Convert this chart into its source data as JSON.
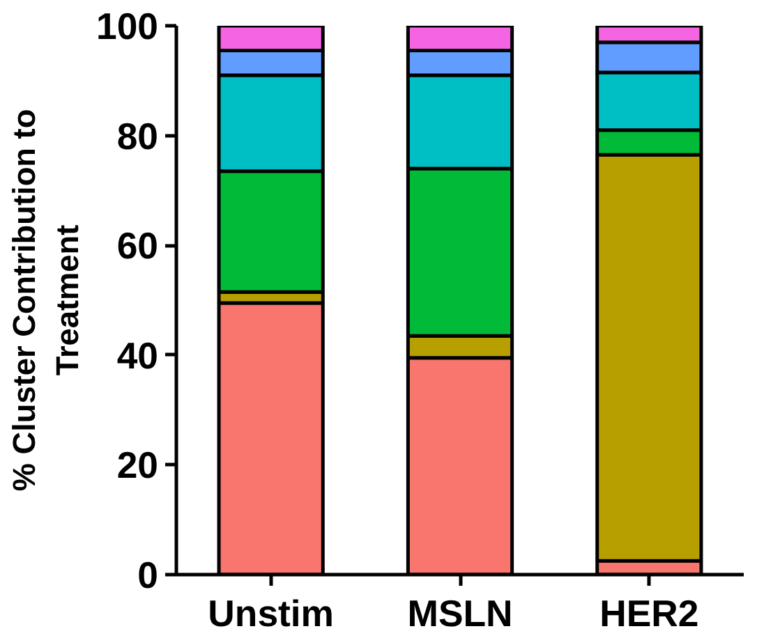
{
  "chart_data": {
    "type": "bar",
    "stacked": true,
    "ylabel": "% Cluster Contribution to\nTreatment",
    "categories": [
      "Unstim",
      "MSLN",
      "HER2"
    ],
    "series": [
      {
        "color": "#f8766d",
        "values": [
          49.5,
          39.5,
          2.5
        ]
      },
      {
        "color": "#b79f00",
        "values": [
          2,
          4,
          74
        ]
      },
      {
        "color": "#00ba38",
        "values": [
          22,
          30.5,
          4.5
        ]
      },
      {
        "color": "#00bfc4",
        "values": [
          17.5,
          17,
          10.5
        ]
      },
      {
        "color": "#619cff",
        "values": [
          4.5,
          4.5,
          5.5
        ]
      },
      {
        "color": "#f564e3",
        "values": [
          4.5,
          4.5,
          3
        ]
      }
    ],
    "ylim": [
      0,
      100
    ],
    "yticks": [
      0,
      20,
      40,
      60,
      80,
      100
    ],
    "grid": false
  }
}
